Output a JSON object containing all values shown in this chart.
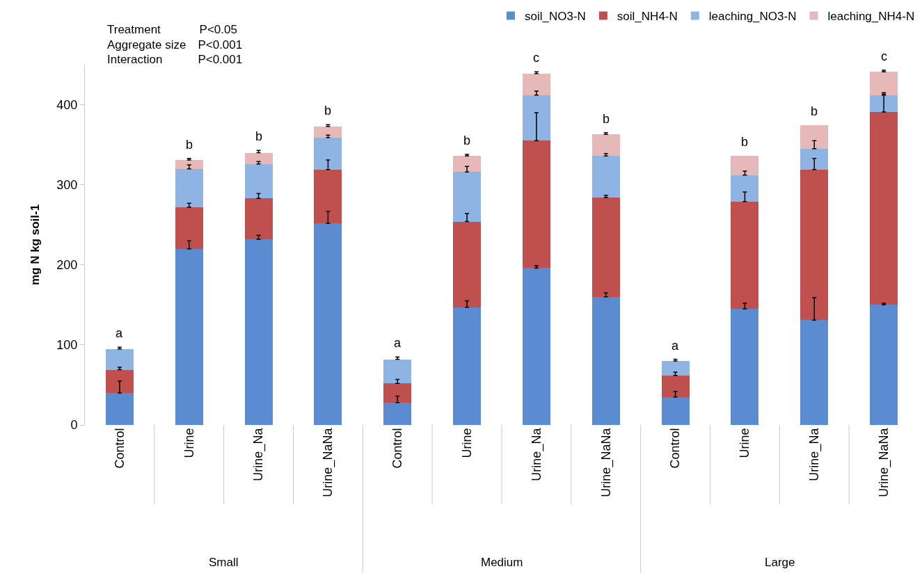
{
  "chart_data": {
    "type": "bar",
    "stacked": true,
    "ylabel": "mg N kg soil-1",
    "categories": [
      "Control",
      "Urine",
      "Urine_Na",
      "Urine_NaNa",
      "Control",
      "Urine",
      "Urine_Na",
      "Urine_NaNa",
      "Control",
      "Urine",
      "Urine_Na",
      "Urine_NaNa"
    ],
    "series": [
      {
        "name": "soil_NO3-N",
        "color": "#5b8bd0",
        "values": [
          40,
          220,
          232,
          252,
          28,
          147,
          196,
          160,
          35,
          145,
          131,
          150
        ],
        "errors": [
          [
            40,
            55
          ],
          [
            220,
            230
          ],
          [
            232,
            237
          ],
          [
            252,
            267
          ],
          [
            28,
            36
          ],
          [
            147,
            155
          ],
          [
            196,
            199
          ],
          [
            160,
            165
          ],
          [
            35,
            42
          ],
          [
            145,
            152
          ],
          [
            131,
            159
          ],
          [
            150,
            152
          ]
        ]
      },
      {
        "name": "soil_NH4-N",
        "color": "#c0504d",
        "values": [
          29,
          52,
          51,
          67,
          24,
          107,
          159,
          124,
          27,
          134,
          188,
          241
        ],
        "errors": [
          [
            69,
            72
          ],
          [
            272,
            277
          ],
          [
            283,
            289
          ],
          [
            319,
            331
          ],
          [
            52,
            57
          ],
          [
            254,
            264
          ],
          [
            355,
            390
          ],
          [
            284,
            287
          ],
          [
            62,
            66
          ],
          [
            279,
            291
          ],
          [
            319,
            333
          ],
          [
            391,
            413
          ]
        ]
      },
      {
        "name": "leaching_NO3-N",
        "color": "#8eb4e3",
        "values": [
          26,
          48,
          43,
          40,
          30,
          62,
          57,
          52,
          18,
          33,
          26,
          21
        ],
        "errors": [
          [
            95,
            97
          ],
          [
            320,
            325
          ],
          [
            326,
            329
          ],
          [
            359,
            362
          ],
          [
            82,
            85
          ],
          [
            316,
            323
          ],
          [
            412,
            417
          ],
          [
            336,
            339
          ],
          [
            80,
            82
          ],
          [
            312,
            317
          ],
          [
            345,
            355
          ],
          [
            412,
            415
          ]
        ]
      },
      {
        "name": "leaching_NH4-N",
        "color": "#e6b9b8",
        "values": [
          0,
          11,
          14,
          14,
          0,
          20,
          27,
          27,
          0,
          24,
          29,
          29
        ],
        "errors": [
          null,
          [
            331,
            333
          ],
          [
            340,
            343
          ],
          [
            373,
            375
          ],
          null,
          [
            336,
            338
          ],
          [
            439,
            441
          ],
          [
            363,
            365
          ],
          null,
          null,
          null,
          [
            441,
            443
          ]
        ]
      }
    ],
    "ylim": [
      0,
      450
    ],
    "yticks": [
      0,
      100,
      200,
      300,
      400
    ],
    "grid": false,
    "legend": "top right",
    "annotations": [
      "Treatment    P<0.05",
      "Aggregate size P<0.001",
      "Interaction   P<0.001",
      "a",
      "b",
      "b",
      "b",
      "a",
      "b",
      "c",
      "b",
      "a",
      "b",
      "b",
      "c",
      "Small",
      "Medium",
      "Large"
    ]
  }
}
